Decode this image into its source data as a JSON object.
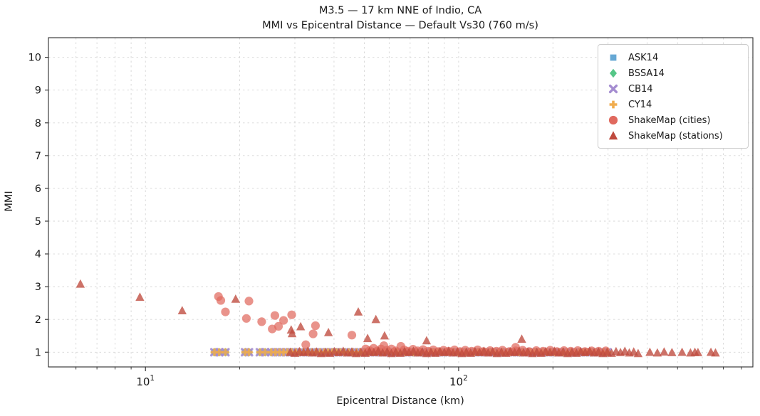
{
  "figure": {
    "title_line1": "M3.5 — 17 km NNE of Indio, CA",
    "title_line2": "MMI vs Epicentral Distance — Default Vs30 (760 m/s)"
  },
  "chart_data": {
    "type": "scatter",
    "title": "M3.5 — 17 km NNE of Indio, CA\nMMI vs Epicentral Distance — Default Vs30 (760 m/s)",
    "xlabel": "Epicentral Distance (km)",
    "ylabel": "MMI",
    "xscale": "log",
    "xlim": [
      4.9,
      870
    ],
    "ylim": [
      0.55,
      10.6
    ],
    "yticks": [
      1,
      2,
      3,
      4,
      5,
      6,
      7,
      8,
      9,
      10
    ],
    "xticks_major": [
      10,
      100
    ],
    "xticks_major_exponents": [
      1,
      2
    ],
    "xticks_minor": [
      6,
      7,
      8,
      9,
      20,
      30,
      40,
      50,
      60,
      70,
      80,
      90,
      200,
      300,
      400,
      500,
      600,
      700,
      800
    ],
    "grid": true,
    "legend_position": "upper right",
    "grid_color": "#c9c9c9",
    "axis_color": "#2b2b2b",
    "gmpe_distances": [
      16.6,
      17.2,
      18.0,
      20.8,
      21.4,
      23.2,
      24.1,
      25.2,
      26.0,
      26.8,
      27.6,
      28.4,
      29.3,
      30.2,
      31.1,
      32.0,
      33.0,
      34.0,
      35.0,
      36.1,
      37.2,
      38.3,
      39.5,
      40.7,
      41.9,
      43.2,
      44.5,
      45.8,
      47.2,
      48.6,
      50.1,
      51.6,
      53.2,
      54.8,
      56.4,
      58.1,
      59.9,
      61.7,
      63.6,
      65.5,
      67.5,
      69.5,
      71.6,
      73.8,
      76.0,
      78.3,
      80.7,
      83.1,
      85.6,
      88.2,
      90.9,
      93.6,
      96.4,
      99.3,
      102.3,
      105.4,
      108.6,
      111.9,
      115.3,
      118.8,
      122.4,
      126.1,
      129.9,
      133.8,
      137.9,
      142.0,
      146.3,
      150.7,
      155.3,
      160.0,
      164.8,
      169.8,
      174.9,
      180.2,
      185.6,
      191.2,
      197.0,
      203.0,
      209.1,
      215.4,
      221.9,
      228.6,
      235.5,
      242.6,
      250.0,
      257.5,
      265.3,
      273.3,
      281.6,
      290.1,
      298.8
    ],
    "series": [
      {
        "name": "ASK14",
        "marker": "square",
        "color": "#66a8d4",
        "opacity": 0.85,
        "use_gmpe_distances": true,
        "mmi_const": 1.0
      },
      {
        "name": "BSSA14",
        "marker": "diamond",
        "color": "#55c687",
        "opacity": 0.85,
        "use_gmpe_distances": true,
        "mmi_const": 1.0
      },
      {
        "name": "CB14",
        "marker": "x",
        "color": "#a48cd0",
        "opacity": 0.85,
        "use_gmpe_distances": true,
        "mmi_const": 1.0
      },
      {
        "name": "CY14",
        "marker": "plus",
        "color": "#f0ac4e",
        "opacity": 0.85,
        "use_gmpe_distances": true,
        "mmi_const": 1.0
      },
      {
        "name": "ShakeMap (cities)",
        "marker": "circle",
        "color": "#e0695e",
        "opacity": 0.72,
        "points": [
          [
            17.1,
            2.7
          ],
          [
            17.4,
            2.58
          ],
          [
            18.0,
            2.23
          ],
          [
            21.0,
            2.03
          ],
          [
            21.4,
            2.56
          ],
          [
            23.5,
            1.93
          ],
          [
            25.4,
            1.71
          ],
          [
            25.9,
            2.12
          ],
          [
            26.6,
            1.79
          ],
          [
            27.6,
            1.97
          ],
          [
            29.3,
            2.14
          ],
          [
            32.5,
            1.23
          ],
          [
            34.3,
            1.56
          ],
          [
            34.9,
            1.81
          ],
          [
            45.6,
            1.52
          ],
          [
            50.5,
            1.1
          ],
          [
            52.0,
            1.05
          ],
          [
            53.5,
            1.12
          ],
          [
            55.0,
            1.04
          ],
          [
            56.5,
            1.1
          ],
          [
            57.7,
            1.2
          ],
          [
            59.0,
            1.06
          ],
          [
            61.0,
            1.1
          ],
          [
            63.0,
            1.04
          ],
          [
            65.4,
            1.18
          ],
          [
            67.0,
            1.07
          ],
          [
            69.0,
            1.03
          ],
          [
            71.5,
            1.09
          ],
          [
            74.0,
            1.04
          ],
          [
            77.0,
            1.08
          ],
          [
            80.0,
            1.03
          ],
          [
            83.0,
            1.07
          ],
          [
            86.0,
            1.02
          ],
          [
            89.5,
            1.06
          ],
          [
            93.0,
            1.03
          ],
          [
            97.0,
            1.07
          ],
          [
            101.0,
            1.02
          ],
          [
            105.0,
            1.06
          ],
          [
            110.0,
            1.03
          ],
          [
            115.0,
            1.07
          ],
          [
            120.0,
            1.02
          ],
          [
            126.0,
            1.05
          ],
          [
            132.0,
            1.03
          ],
          [
            138.0,
            1.06
          ],
          [
            145.0,
            1.02
          ],
          [
            152.0,
            1.15
          ],
          [
            152.0,
            1.04
          ],
          [
            160.0,
            1.06
          ],
          [
            168.0,
            1.02
          ],
          [
            177.0,
            1.05
          ],
          [
            186.0,
            1.03
          ],
          [
            196.0,
            1.06
          ],
          [
            206.0,
            1.02
          ],
          [
            217.0,
            1.05
          ],
          [
            228.0,
            1.03
          ],
          [
            240.0,
            1.05
          ],
          [
            253.0,
            1.02
          ],
          [
            266.0,
            1.04
          ],
          [
            280.0,
            1.03
          ],
          [
            295.0,
            1.04
          ]
        ]
      },
      {
        "name": "ShakeMap (stations)",
        "marker": "triangle",
        "color": "#bf4a3d",
        "opacity": 0.78,
        "points": [
          [
            6.2,
            3.08
          ],
          [
            9.6,
            2.68
          ],
          [
            13.1,
            2.27
          ],
          [
            19.4,
            2.62
          ],
          [
            29.2,
            1.68
          ],
          [
            29.4,
            1.57
          ],
          [
            31.3,
            1.78
          ],
          [
            38.4,
            1.6
          ],
          [
            47.8,
            2.23
          ],
          [
            51.2,
            1.42
          ],
          [
            54.4,
            2.0
          ],
          [
            58.0,
            1.5
          ],
          [
            79.0,
            1.35
          ],
          [
            159.0,
            1.4
          ],
          [
            29.0,
            1.0
          ],
          [
            30.0,
            0.97
          ],
          [
            31.0,
            1.02
          ],
          [
            32.0,
            0.99
          ],
          [
            33.0,
            1.03
          ],
          [
            34.1,
            0.98
          ],
          [
            35.2,
            1.01
          ],
          [
            36.4,
            0.96
          ],
          [
            37.6,
            1.0
          ],
          [
            38.8,
            0.97
          ],
          [
            40.1,
            1.02
          ],
          [
            41.4,
            0.99
          ],
          [
            42.8,
            1.03
          ],
          [
            44.2,
            0.98
          ],
          [
            45.6,
            1.01
          ],
          [
            47.1,
            0.96
          ],
          [
            48.7,
            1.0
          ],
          [
            50.3,
            0.97
          ],
          [
            51.9,
            1.02
          ],
          [
            53.6,
            0.99
          ],
          [
            55.4,
            1.03
          ],
          [
            57.2,
            0.98
          ],
          [
            59.1,
            1.01
          ],
          [
            61.0,
            0.96
          ],
          [
            63.0,
            1.0
          ],
          [
            65.1,
            0.97
          ],
          [
            67.2,
            1.02
          ],
          [
            69.4,
            0.99
          ],
          [
            71.7,
            1.03
          ],
          [
            74.1,
            0.98
          ],
          [
            76.5,
            1.01
          ],
          [
            79.0,
            0.96
          ],
          [
            81.6,
            1.0
          ],
          [
            84.3,
            0.97
          ],
          [
            87.1,
            1.02
          ],
          [
            90.0,
            0.99
          ],
          [
            92.9,
            1.03
          ],
          [
            96.0,
            0.98
          ],
          [
            99.1,
            1.01
          ],
          [
            102.4,
            0.96
          ],
          [
            105.8,
            1.0
          ],
          [
            109.2,
            0.97
          ],
          [
            112.8,
            1.02
          ],
          [
            116.5,
            0.99
          ],
          [
            120.4,
            1.03
          ],
          [
            124.3,
            0.98
          ],
          [
            128.4,
            1.01
          ],
          [
            132.6,
            0.96
          ],
          [
            137.0,
            1.0
          ],
          [
            141.5,
            0.97
          ],
          [
            146.2,
            1.02
          ],
          [
            151.0,
            0.99
          ],
          [
            156.0,
            1.03
          ],
          [
            161.1,
            0.98
          ],
          [
            166.4,
            1.01
          ],
          [
            171.9,
            0.96
          ],
          [
            177.6,
            1.0
          ],
          [
            183.4,
            0.97
          ],
          [
            189.5,
            1.02
          ],
          [
            195.7,
            0.99
          ],
          [
            202.2,
            1.03
          ],
          [
            208.8,
            0.98
          ],
          [
            215.7,
            1.01
          ],
          [
            222.8,
            0.96
          ],
          [
            230.1,
            1.0
          ],
          [
            237.7,
            0.97
          ],
          [
            245.5,
            1.02
          ],
          [
            253.6,
            0.99
          ],
          [
            262.0,
            1.03
          ],
          [
            270.6,
            0.98
          ],
          [
            279.5,
            1.01
          ],
          [
            288.7,
            0.96
          ],
          [
            298.2,
            1.0
          ],
          [
            308.0,
            0.97
          ],
          [
            318.2,
            1.02
          ],
          [
            328.7,
            0.99
          ],
          [
            339.5,
            1.03
          ],
          [
            350.7,
            0.98
          ],
          [
            362.3,
            1.01
          ],
          [
            374.2,
            0.96
          ],
          [
            408,
            1.0
          ],
          [
            431,
            0.98
          ],
          [
            453,
            1.01
          ],
          [
            480,
            0.99
          ],
          [
            517,
            1.0
          ],
          [
            550,
            0.98
          ],
          [
            568,
            1.0
          ],
          [
            581,
            0.99
          ],
          [
            639,
            1.0
          ],
          [
            661,
            0.98
          ]
        ]
      }
    ]
  }
}
